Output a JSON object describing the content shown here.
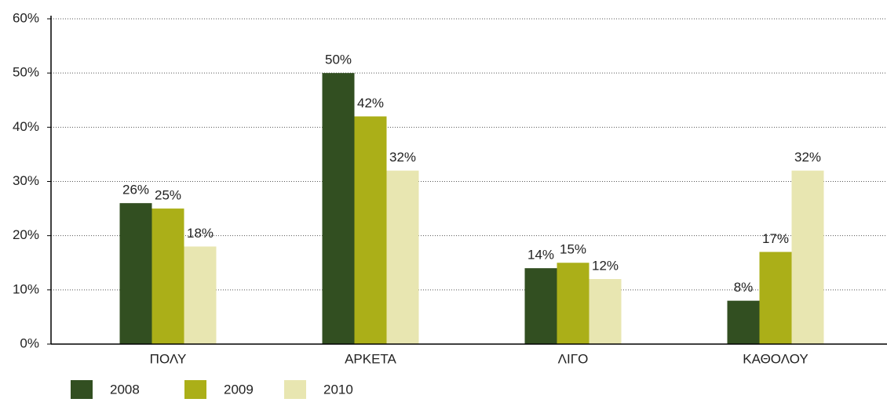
{
  "chart_data": {
    "type": "bar",
    "categories": [
      "ΠΟΛΥ",
      "ΑΡΚΕΤΑ",
      "ΛΙΓΟ",
      "ΚΑΘΟΛΟΥ"
    ],
    "series": [
      {
        "name": "2008",
        "color": "#324f21",
        "values": [
          26,
          50,
          14,
          8
        ],
        "value_labels": [
          "26%",
          "50%",
          "14%",
          "8%"
        ]
      },
      {
        "name": "2009",
        "color": "#abaf18",
        "values": [
          25,
          42,
          15,
          17
        ],
        "value_labels": [
          "25%",
          "42%",
          "15%",
          "17%"
        ]
      },
      {
        "name": "2010",
        "color": "#e8e6b1",
        "values": [
          18,
          32,
          12,
          32
        ],
        "value_labels": [
          "18%",
          "32%",
          "12%",
          "32%"
        ]
      }
    ],
    "ylim": [
      0,
      60
    ],
    "yticks": [
      {
        "value": 0,
        "label": "0%"
      },
      {
        "value": 10,
        "label": "10%"
      },
      {
        "value": 20,
        "label": "20%"
      },
      {
        "value": 30,
        "label": "30%"
      },
      {
        "value": 40,
        "label": "40%"
      },
      {
        "value": 50,
        "label": "50%"
      },
      {
        "value": 60,
        "label": "60%"
      }
    ],
    "grid": true,
    "legend": "bottom-left"
  }
}
